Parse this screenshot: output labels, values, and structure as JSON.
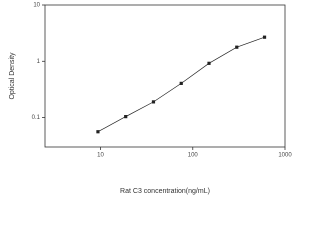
{
  "chart_data": {
    "type": "line",
    "x_label": "Rat C3 concentration(ng/mL)",
    "y_label": "Optical Density",
    "x": [
      9.375,
      18.75,
      37.5,
      75,
      150,
      300,
      600
    ],
    "series": [
      {
        "color": "#222222",
        "values": [
          0.056,
          0.104,
          0.19,
          0.405,
          0.92,
          1.78,
          2.68
        ]
      }
    ],
    "xlim": [
      2.5,
      1000
    ],
    "xticks": [
      10,
      100,
      1000
    ],
    "xscale": "log",
    "ylim": [
      0.03,
      10
    ],
    "yticks": [
      0.1,
      1,
      10
    ],
    "yscale": "log"
  }
}
